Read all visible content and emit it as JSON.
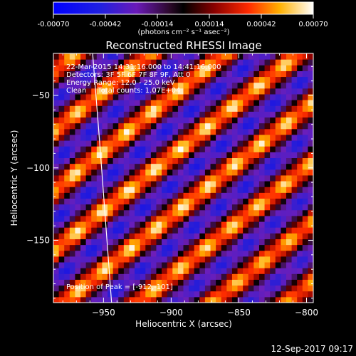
{
  "chart_data": {
    "type": "heatmap",
    "title": "Reconstructed RHESSI Image",
    "xlabel": "Heliocentric X (arcsec)",
    "ylabel": "Heliocentric Y (arcsec)",
    "xlim": [
      -987,
      -795
    ],
    "ylim": [
      -193,
      -21
    ],
    "x_ticks": [
      -950,
      -900,
      -850,
      -800
    ],
    "x_tick_labels": [
      "−950",
      "−900",
      "−850",
      "−800"
    ],
    "y_ticks": [
      -50,
      -100,
      -150
    ],
    "y_tick_labels": [
      "−50",
      "−100",
      "−150"
    ],
    "colorbar": {
      "range": [
        -0.0007,
        0.0007
      ],
      "ticks": [
        -0.0007,
        -0.00042,
        -0.00014,
        0.00014,
        0.00042,
        0.0007
      ],
      "tick_labels": [
        "-0.00070",
        "-0.00042",
        "-0.00014",
        "0.00014",
        "0.00042",
        "0.00070"
      ],
      "unit_label": "(photons cm⁻² s⁻¹ asec⁻²)"
    },
    "annotations": [
      "22-Mar-2015 14:31:16.000 to 14:41:16.000",
      "Detectors: 3F 5F 6F 7F 8F 9F, Att 0",
      "Energy Range: 12.0 - 25.0 keV",
      "Clean     Total counts: 1.07E+04"
    ],
    "peak": {
      "label": "Position of Peak = [-912,-101]",
      "x": -912,
      "y": -101
    },
    "limb_curve": [
      [
        -958,
        -21
      ],
      [
        -953,
        -80
      ],
      [
        -949,
        -130
      ],
      [
        -944,
        -193
      ]
    ]
  },
  "footer": {
    "timestamp": "12-Sep-2017 09:17"
  }
}
